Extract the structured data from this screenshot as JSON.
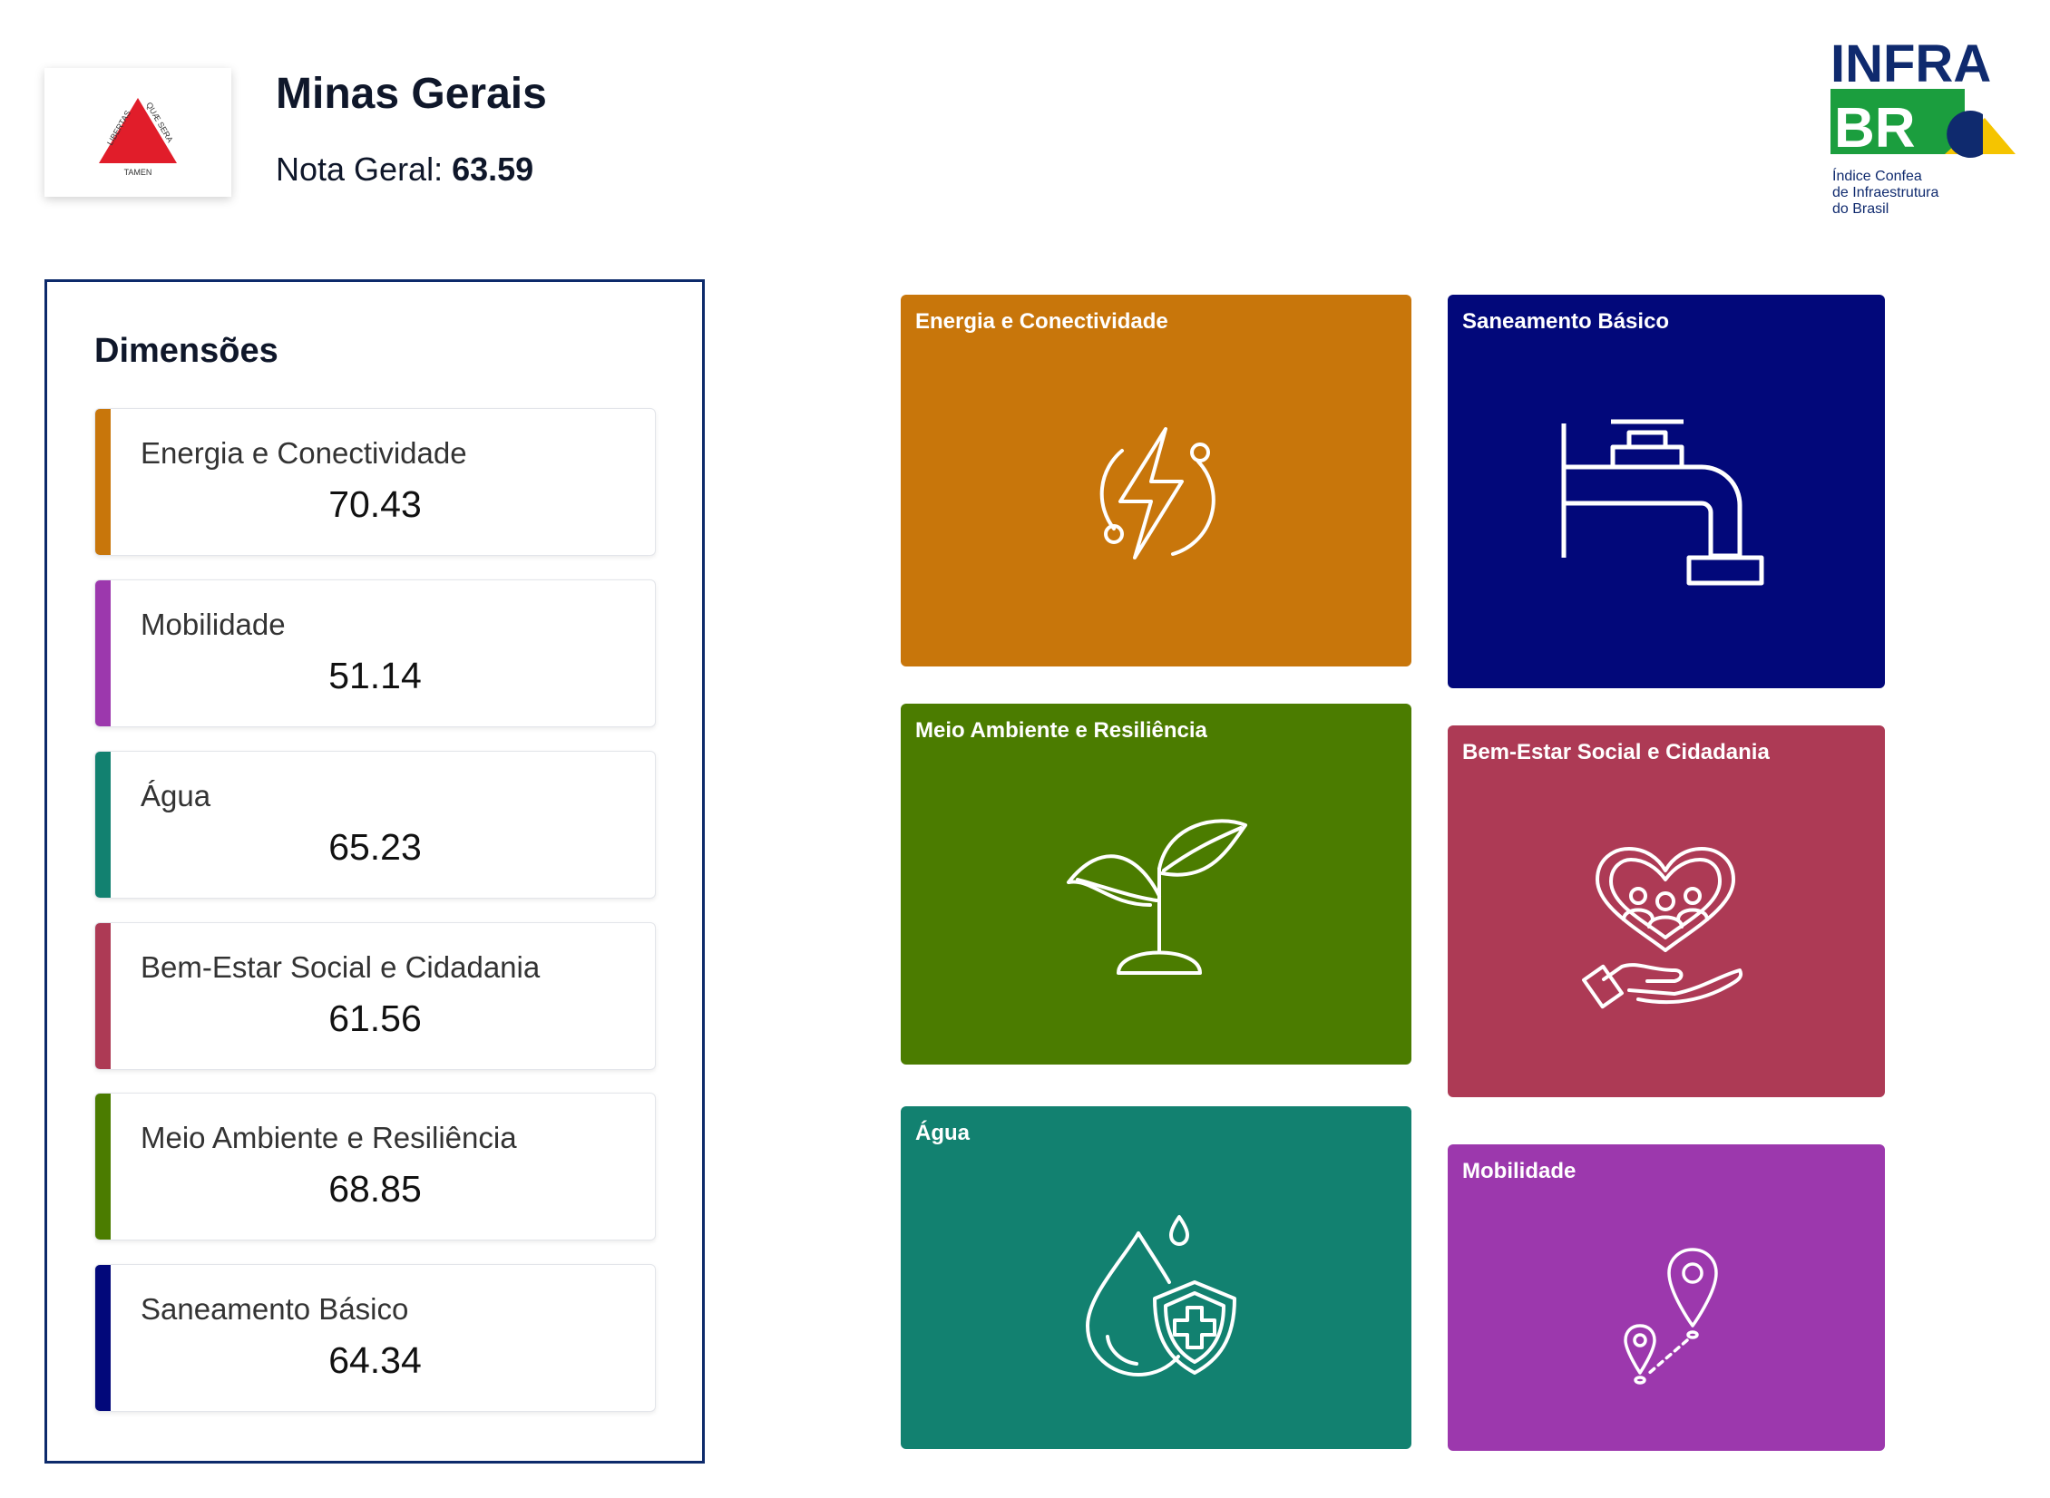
{
  "header": {
    "state_name": "Minas Gerais",
    "overall_label": "Nota Geral:",
    "overall_value": "63.59",
    "flag": {
      "motto_left": "LIBERTAS",
      "motto_right": "QUÆ SERA",
      "motto_bottom": "TAMEN",
      "triangle_color": "#e11d2a"
    }
  },
  "logo": {
    "word_top": "INFRA",
    "word_bottom": "BR",
    "tagline_1": "Índice Confea",
    "tagline_2": "de Infraestrutura",
    "tagline_3": "do Brasil",
    "colors": {
      "navy": "#0f2a6e",
      "green": "#1b9e3e",
      "yellow": "#f5c400"
    }
  },
  "dimensions": {
    "title": "Dimensões",
    "items": [
      {
        "label": "Energia e Conectividade",
        "value": "70.43",
        "color": "#c8760b",
        "fraction": 0.7043
      },
      {
        "label": "Mobilidade",
        "value": "51.14",
        "color": "#9c38ad",
        "fraction": 0.5114
      },
      {
        "label": "Água",
        "value": "65.23",
        "color": "#128170",
        "fraction": 0.6523
      },
      {
        "label": "Bem-Estar Social e Cidadania",
        "value": "61.56",
        "color": "#ad3a55",
        "fraction": 0.6156
      },
      {
        "label": "Meio Ambiente e Resiliência",
        "value": "68.85",
        "color": "#4b7c00",
        "fraction": 0.6885
      },
      {
        "label": "Saneamento Básico",
        "value": "64.34",
        "color": "#02087a",
        "fraction": 0.6434
      }
    ]
  },
  "tiles": [
    {
      "title": "Energia e Conectividade",
      "color": "#c8760b",
      "icon": "lightning-icon"
    },
    {
      "title": "Saneamento Básico",
      "color": "#02087a",
      "icon": "faucet-icon"
    },
    {
      "title": "Meio Ambiente e Resiliência",
      "color": "#4b7c00",
      "icon": "sprout-icon"
    },
    {
      "title": "Bem-Estar Social e Cidadania",
      "color": "#ad3a55",
      "icon": "heart-hand-icon"
    },
    {
      "title": "Água",
      "color": "#128170",
      "icon": "water-shield-icon"
    },
    {
      "title": "Mobilidade",
      "color": "#9c38ad",
      "icon": "map-pins-icon"
    }
  ]
}
